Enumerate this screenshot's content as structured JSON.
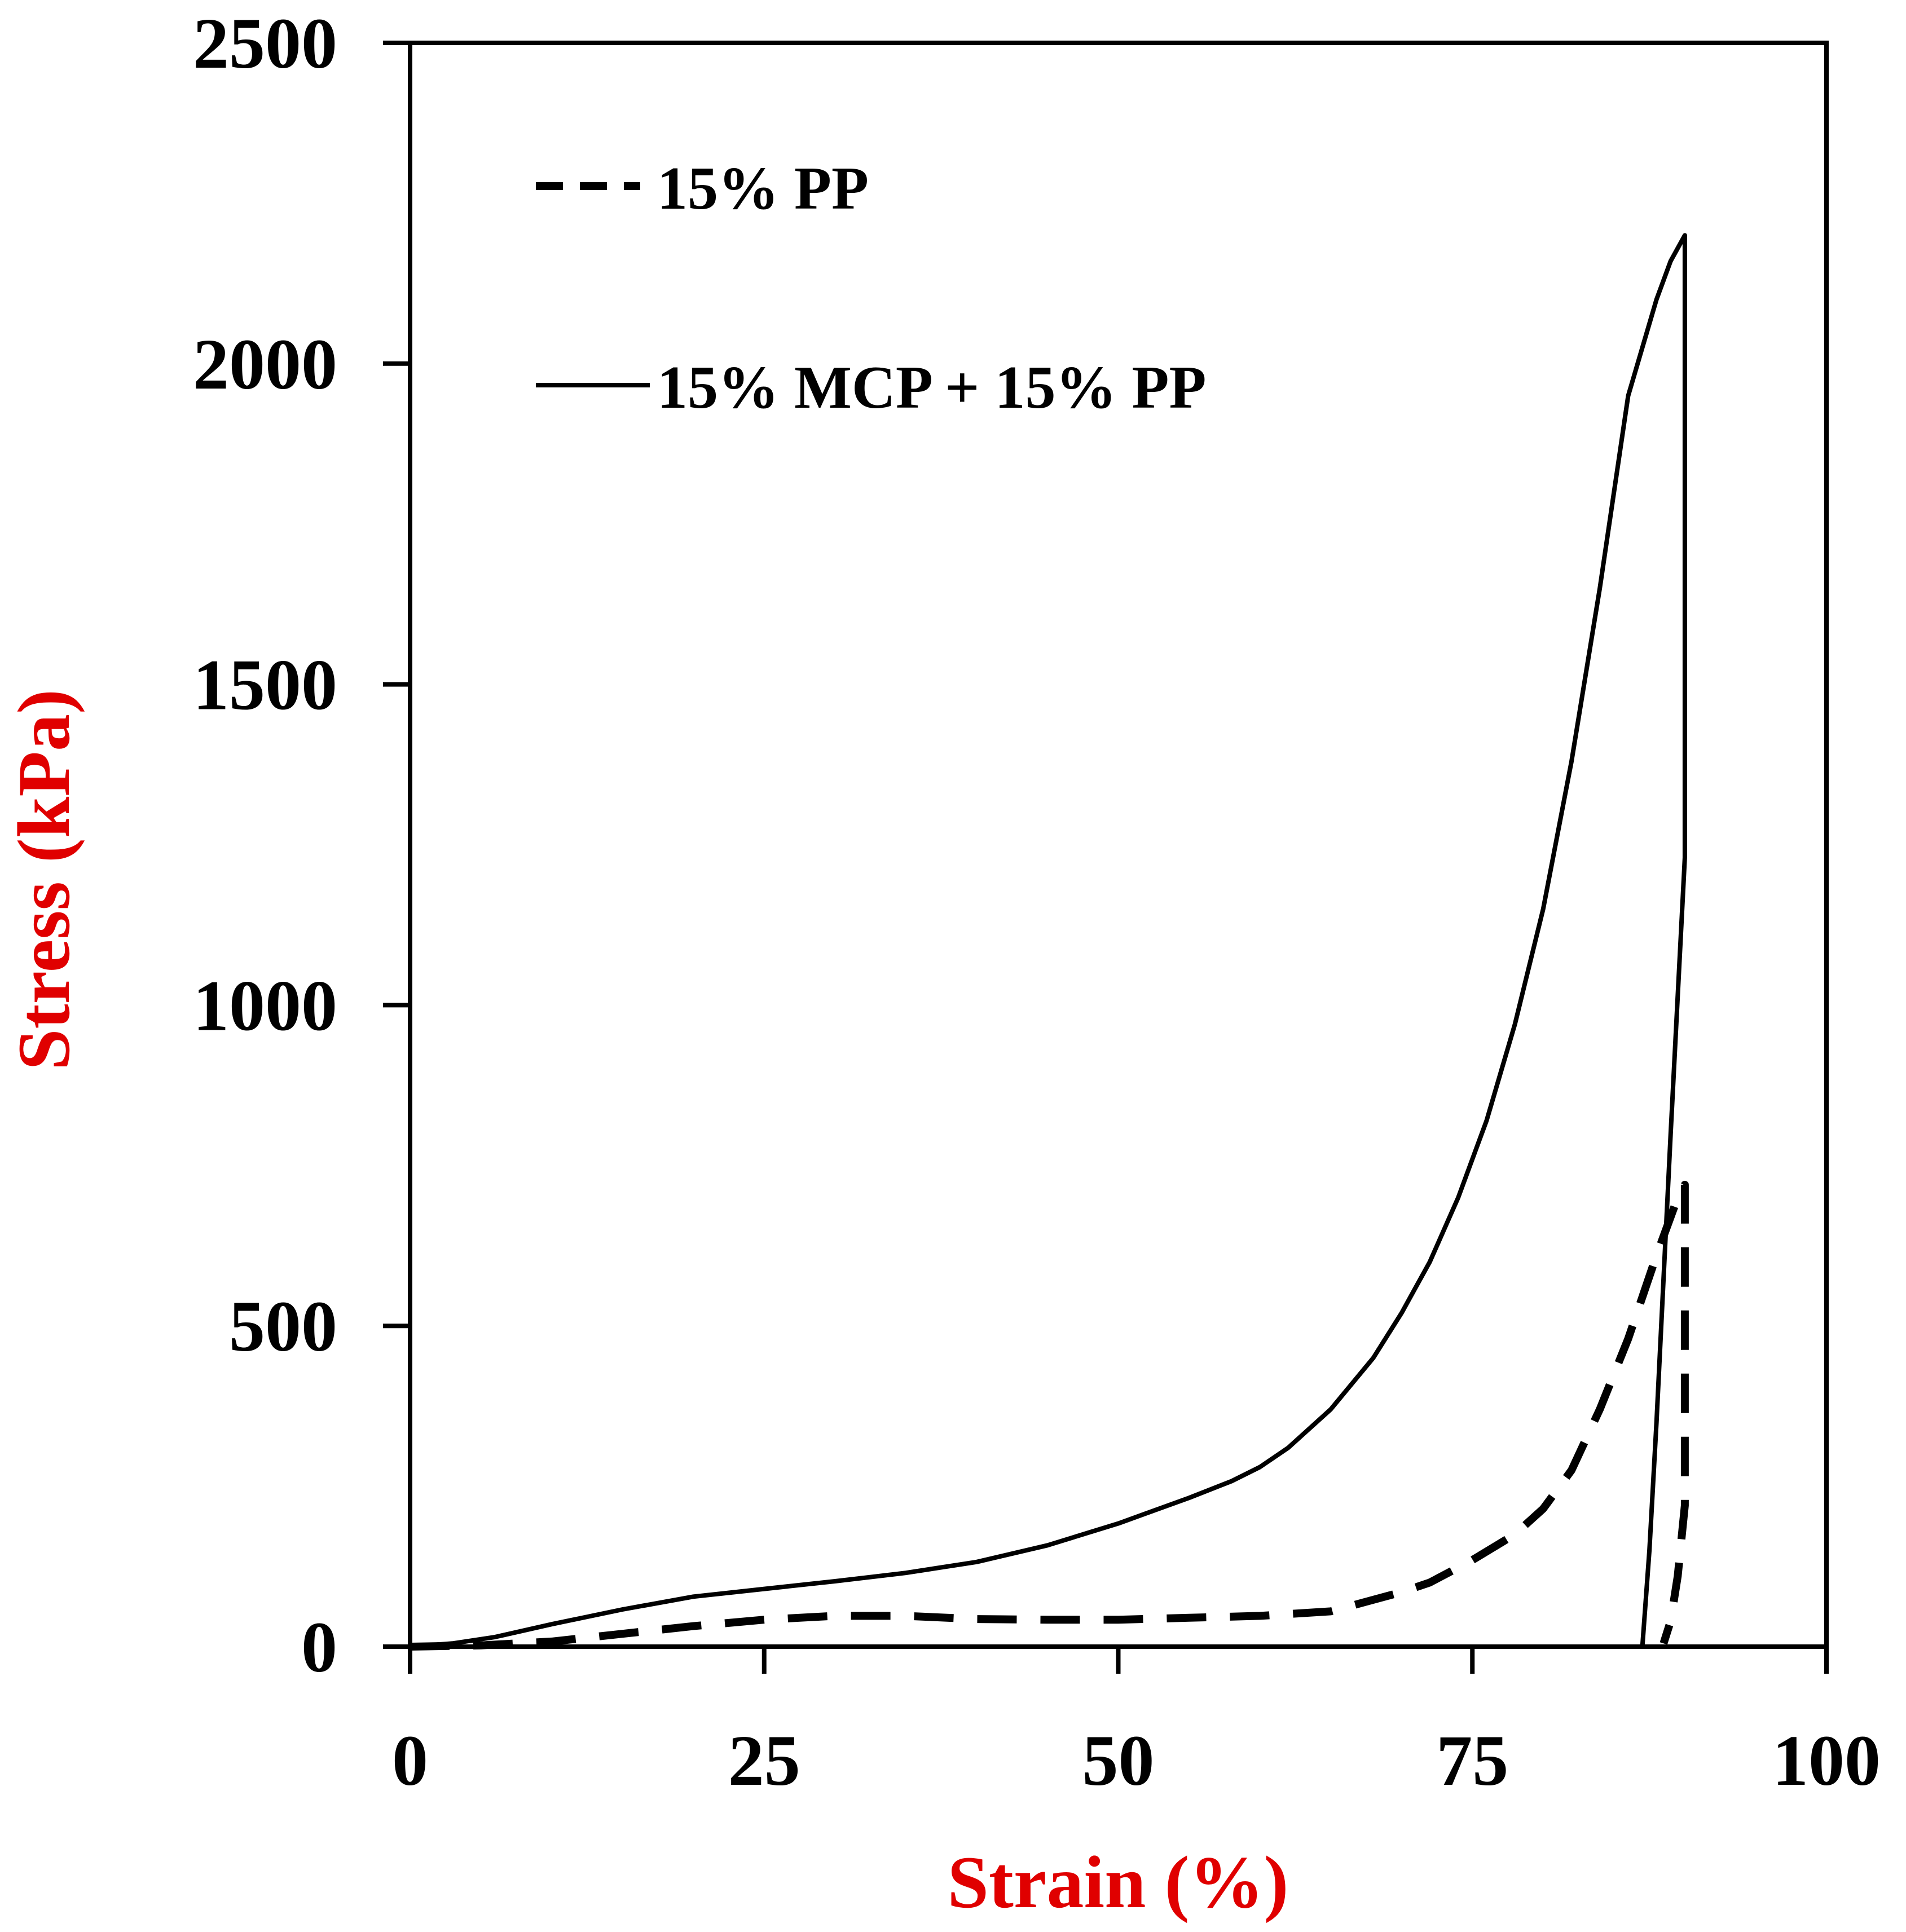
{
  "chart_data": {
    "type": "line",
    "title": "",
    "xlabel": "Strain (%)",
    "ylabel": "Stress (kPa)",
    "xlim": [
      0,
      100
    ],
    "ylim": [
      0,
      2500
    ],
    "xticks": [
      0,
      25,
      50,
      75,
      100
    ],
    "yticks": [
      0,
      500,
      1000,
      1500,
      2000,
      2500
    ],
    "grid": false,
    "legend_position": "top-left",
    "colors": {
      "axis": "#000000",
      "series": "#000000",
      "axis_title": "#e00000"
    },
    "series": [
      {
        "name": "15% PP",
        "style": "dashed",
        "x": [
          0,
          5,
          10,
          15,
          20,
          25,
          30,
          35,
          40,
          45,
          50,
          55,
          60,
          65,
          70,
          72,
          75,
          78,
          80,
          82,
          84,
          86,
          88,
          89,
          89.5,
          90,
          90,
          89.5,
          89,
          88.5
        ],
        "y": [
          0,
          2,
          8,
          20,
          32,
          42,
          48,
          48,
          43,
          42,
          42,
          45,
          48,
          55,
          85,
          100,
          135,
          175,
          215,
          275,
          370,
          480,
          610,
          670,
          700,
          720,
          220,
          110,
          40,
          5
        ]
      },
      {
        "name": "15% MCP + 15% PP",
        "style": "solid",
        "x": [
          0,
          3,
          6,
          10,
          15,
          20,
          25,
          30,
          35,
          40,
          45,
          50,
          55,
          58,
          60,
          62,
          65,
          68,
          70,
          72,
          74,
          76,
          78,
          80,
          82,
          84,
          86,
          88,
          89,
          90,
          90,
          90,
          89,
          88,
          87.5,
          87
        ],
        "y": [
          0,
          5,
          15,
          35,
          58,
          78,
          90,
          102,
          115,
          132,
          158,
          192,
          232,
          258,
          280,
          310,
          370,
          450,
          520,
          600,
          700,
          820,
          970,
          1150,
          1380,
          1650,
          1950,
          2100,
          2160,
          2200,
          1250,
          1230,
          800,
          350,
          150,
          0
        ]
      }
    ]
  }
}
